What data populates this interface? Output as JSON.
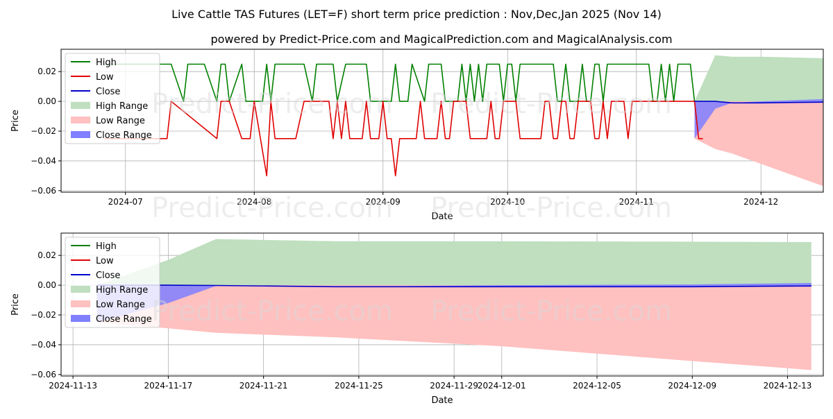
{
  "title": "Live Cattle TAS Futures (LET=F) short term price prediction : Nov,Dec,Jan 2025 (Nov 14)",
  "subtitle": "powered by Predict-Price.com and MagicalPrediction.com and MagicalAnalysis.com",
  "watermark": "Predict-Price.com",
  "colors": {
    "high": "#008000",
    "low": "#e00000",
    "close": "#0000cc",
    "high_range": "#bfdfbf",
    "low_range": "#ffc0c0",
    "close_range": "#7f7fff"
  },
  "chart_data": [
    {
      "type": "line",
      "xlabel": "Date",
      "ylabel": "Price",
      "xlim_day": [
        -15.5,
        168
      ],
      "ylim": [
        -0.061,
        0.035
      ],
      "grid": true,
      "legend_position": "top-left",
      "legend": [
        "High",
        "Low",
        "Close",
        "High Range",
        "Low Range",
        "Close Range"
      ],
      "x_ticks": [
        {
          "label": "2024-07",
          "day": 0
        },
        {
          "label": "2024-08",
          "day": 31
        },
        {
          "label": "2024-09",
          "day": 62
        },
        {
          "label": "2024-10",
          "day": 92
        },
        {
          "label": "2024-11",
          "day": 123
        },
        {
          "label": "2024-12",
          "day": 153
        }
      ],
      "y_ticks": [
        0.02,
        0.0,
        -0.02,
        -0.04,
        -0.06
      ],
      "y_tick_labels": [
        "0.02",
        "0.00",
        "−0.02",
        "−0.04",
        "−0.06"
      ],
      "series": [
        {
          "name": "High",
          "x_day": [
            -5,
            -4,
            11,
            14,
            15,
            19,
            22,
            23,
            24,
            25,
            28,
            29,
            30,
            33,
            34,
            35,
            36,
            38,
            39,
            40,
            43,
            45,
            46,
            50,
            51,
            53,
            54,
            56,
            57,
            58,
            59,
            61,
            64,
            65,
            66,
            67,
            68,
            69,
            72,
            73,
            74,
            75,
            76,
            77,
            78,
            79,
            80,
            81,
            82,
            83,
            84,
            85,
            86,
            87,
            88,
            89,
            90,
            91,
            92,
            93,
            94,
            95,
            96,
            97,
            98,
            99,
            100,
            101,
            102,
            103,
            104,
            105,
            106,
            107,
            108,
            109,
            110,
            111,
            112,
            113,
            114,
            115,
            116,
            117,
            118,
            119,
            120,
            121,
            122,
            123,
            124,
            125,
            126,
            127,
            128,
            129,
            130,
            131,
            132,
            133,
            134,
            135,
            136,
            137
          ],
          "values": [
            0.025,
            0.025,
            0.025,
            0.0,
            0.025,
            0.025,
            0.0,
            0.025,
            0.025,
            0.0,
            0.025,
            0.0,
            0.0,
            0.0,
            0.025,
            0.0,
            0.025,
            0.025,
            0.025,
            0.025,
            0.025,
            0.0,
            0.025,
            0.025,
            0.0,
            0.025,
            0.025,
            0.025,
            0.025,
            0.025,
            0.0,
            0.0,
            0.0,
            0.025,
            0.0,
            0.0,
            0.0,
            0.025,
            0.0,
            0.025,
            0.025,
            0.025,
            0.025,
            0.0,
            0.0,
            0.0,
            0.0,
            0.025,
            0.0,
            0.025,
            0.0,
            0.025,
            0.0,
            0.025,
            0.025,
            0.025,
            0.025,
            0.0,
            0.025,
            0.025,
            0.0,
            0.025,
            0.025,
            0.025,
            0.025,
            0.025,
            0.025,
            0.025,
            0.025,
            0.025,
            0.0,
            0.0,
            0.025,
            0.0,
            0.0,
            0.0,
            0.025,
            0.0,
            0.0,
            0.025,
            0.025,
            0.0,
            0.025,
            0.025,
            0.025,
            0.025,
            0.025,
            0.025,
            0.025,
            0.025,
            0.025,
            0.025,
            0.025,
            0.0,
            0.0,
            0.025,
            0.0,
            0.025,
            0.0,
            0.025,
            0.025,
            0.025,
            0.025,
            0.0
          ]
        },
        {
          "name": "Low",
          "x_day": [
            -5,
            -3,
            10,
            11,
            22,
            23,
            24,
            25,
            28,
            29,
            30,
            31,
            34,
            35,
            36,
            37,
            41,
            43,
            44,
            49,
            50,
            51,
            52,
            53,
            54,
            55,
            56,
            57,
            58,
            59,
            60,
            61,
            62,
            63,
            64,
            65,
            66,
            67,
            68,
            69,
            70,
            71,
            72,
            73,
            74,
            75,
            76,
            77,
            78,
            79,
            80,
            81,
            82,
            83,
            84,
            85,
            86,
            87,
            88,
            89,
            90,
            91,
            92,
            93,
            94,
            95,
            96,
            97,
            98,
            99,
            100,
            101,
            102,
            103,
            104,
            105,
            106,
            107,
            108,
            109,
            110,
            111,
            112,
            113,
            114,
            115,
            116,
            117,
            118,
            119,
            120,
            121,
            122,
            123,
            124,
            125,
            126,
            127,
            128,
            129,
            130,
            131,
            132,
            133,
            134,
            135,
            136,
            137,
            138,
            139
          ],
          "values": [
            -0.025,
            -0.025,
            -0.025,
            0.0,
            -0.025,
            0.0,
            0.0,
            0.0,
            -0.025,
            -0.025,
            -0.025,
            0.0,
            -0.05,
            0.0,
            -0.025,
            -0.025,
            -0.025,
            0.0,
            0.0,
            0.0,
            -0.025,
            0.0,
            -0.025,
            0.0,
            -0.025,
            -0.025,
            -0.025,
            -0.025,
            0.0,
            -0.025,
            -0.025,
            -0.025,
            0.0,
            -0.025,
            -0.025,
            -0.05,
            -0.025,
            -0.025,
            -0.025,
            -0.025,
            -0.025,
            0.0,
            -0.025,
            -0.025,
            -0.025,
            -0.025,
            0.0,
            -0.025,
            -0.025,
            0.0,
            0.0,
            0.0,
            0.0,
            -0.025,
            -0.025,
            -0.025,
            -0.025,
            -0.025,
            0.0,
            -0.025,
            -0.025,
            0.0,
            0.0,
            0.0,
            0.0,
            -0.025,
            -0.025,
            -0.025,
            -0.025,
            -0.025,
            -0.025,
            0.0,
            0.0,
            -0.025,
            -0.025,
            0.0,
            0.0,
            -0.025,
            -0.025,
            0.0,
            0.0,
            0.0,
            0.0,
            -0.025,
            -0.025,
            0.0,
            -0.025,
            0.0,
            0.0,
            0.0,
            0.0,
            -0.025,
            0.0,
            0.0,
            0.0,
            0.0,
            0.0,
            0.0,
            0.0,
            0.0,
            0.0,
            0.0,
            0.0,
            0.0,
            0.0,
            0.0,
            0.0,
            0.0,
            -0.025,
            -0.025
          ]
        },
        {
          "name": "Close",
          "x_day": [
            137,
            142,
            146,
            153,
            168
          ],
          "values": [
            0.0,
            0.0,
            -0.001,
            -0.001,
            -0.0005
          ]
        }
      ],
      "ranges": [
        {
          "name": "High Range",
          "x_day": [
            137,
            142,
            146,
            153,
            168
          ],
          "upper": [
            0.0,
            0.031,
            0.03,
            0.03,
            0.029
          ],
          "lower": [
            0.0,
            0.0,
            0.0,
            0.0,
            0.0
          ]
        },
        {
          "name": "Low Range",
          "x_day": [
            137,
            142,
            146,
            153,
            168
          ],
          "upper": [
            0.0,
            0.0,
            0.0,
            0.0,
            0.0
          ],
          "lower": [
            -0.025,
            -0.032,
            -0.035,
            -0.042,
            -0.057
          ]
        },
        {
          "name": "Close Range",
          "x_day": [
            137,
            142,
            146,
            153,
            168
          ],
          "upper": [
            0.0,
            0.0,
            -0.001,
            0.0,
            0.0015
          ],
          "lower": [
            -0.025,
            -0.005,
            -0.001,
            -0.001,
            -0.001
          ]
        }
      ]
    },
    {
      "type": "line",
      "xlabel": "Date",
      "ylabel": "Price",
      "xlim_day": [
        -0.5,
        31.5
      ],
      "ylim": [
        -0.061,
        0.035
      ],
      "grid": true,
      "legend_position": "top-left",
      "legend": [
        "High",
        "Low",
        "Close",
        "High Range",
        "Low Range",
        "Close Range"
      ],
      "x_ticks": [
        {
          "label": "2024-11-13",
          "day": 0
        },
        {
          "label": "2024-11-17",
          "day": 4
        },
        {
          "label": "2024-11-21",
          "day": 8
        },
        {
          "label": "2024-11-25",
          "day": 12
        },
        {
          "label": "2024-11-29",
          "day": 16
        },
        {
          "label": "2024-12-01",
          "day": 18
        },
        {
          "label": "2024-12-05",
          "day": 22
        },
        {
          "label": "2024-12-09",
          "day": 26
        },
        {
          "label": "2024-12-13",
          "day": 30
        }
      ],
      "y_ticks": [
        0.02,
        0.0,
        -0.02,
        -0.04,
        -0.06
      ],
      "y_tick_labels": [
        "0.02",
        "0.00",
        "−0.02",
        "−0.04",
        "−0.06"
      ],
      "series": [
        {
          "name": "Close",
          "x_day": [
            1,
            4,
            6,
            11,
            18,
            26,
            31
          ],
          "values": [
            0.0,
            0.0,
            -0.0002,
            -0.001,
            -0.001,
            -0.001,
            -0.0005
          ]
        }
      ],
      "ranges": [
        {
          "name": "High Range",
          "x_day": [
            1,
            4,
            6,
            11,
            18,
            26,
            31
          ],
          "upper": [
            0.0,
            0.017,
            0.031,
            0.0295,
            0.0295,
            0.0292,
            0.029
          ],
          "lower": [
            0.0,
            0.0,
            0.0,
            0.0,
            0.0,
            0.0,
            0.0
          ]
        },
        {
          "name": "Low Range",
          "x_day": [
            1,
            4,
            6,
            11,
            18,
            26,
            31
          ],
          "upper": [
            0.0,
            0.0,
            0.0,
            0.0,
            0.0,
            0.0,
            0.0
          ],
          "lower": [
            -0.025,
            -0.029,
            -0.032,
            -0.035,
            -0.041,
            -0.051,
            -0.057
          ]
        },
        {
          "name": "Close Range",
          "x_day": [
            1,
            4,
            6,
            11,
            18,
            26,
            31
          ],
          "upper": [
            0.0,
            0.0,
            0.0,
            -0.001,
            0.0,
            0.0005,
            0.0015
          ],
          "lower": [
            -0.025,
            -0.012,
            -0.0005,
            -0.001,
            -0.001,
            -0.001,
            -0.001
          ]
        }
      ]
    }
  ]
}
